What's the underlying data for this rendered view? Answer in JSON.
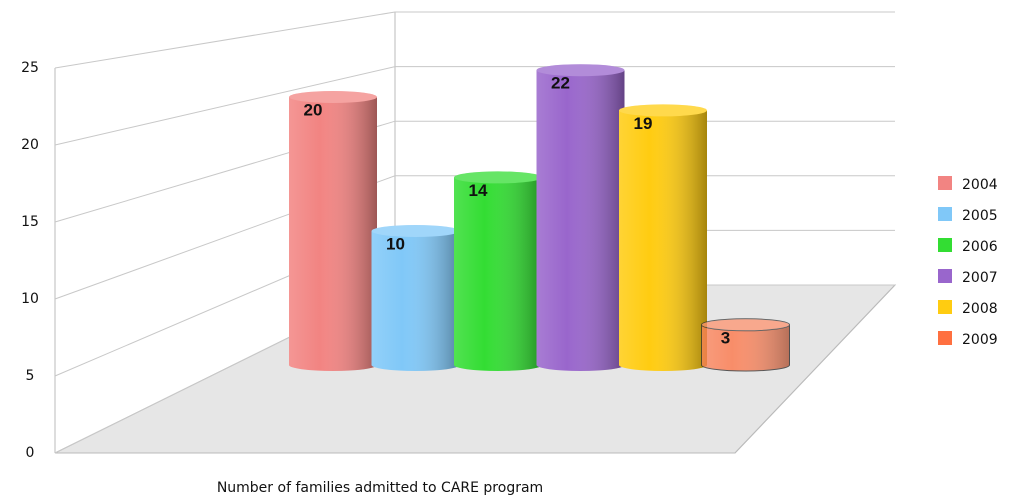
{
  "chart_data": {
    "type": "bar3d",
    "x_label": "Number of families admitted to CARE program",
    "ylim": [
      0,
      25
    ],
    "yticks": [
      0,
      5,
      10,
      15,
      20,
      25
    ],
    "grid": true,
    "legend": "right",
    "series": [
      {
        "name": "2004",
        "color": "#f28482",
        "values": [
          20
        ]
      },
      {
        "name": "2005",
        "color": "#80c8f8",
        "values": [
          10
        ]
      },
      {
        "name": "2006",
        "color": "#33dd33",
        "values": [
          14
        ]
      },
      {
        "name": "2007",
        "color": "#9966cc",
        "values": [
          22
        ]
      },
      {
        "name": "2008",
        "color": "#ffcc11",
        "values": [
          19
        ]
      },
      {
        "name": "2009",
        "color": "#ff7040",
        "values": [
          3
        ]
      }
    ]
  }
}
